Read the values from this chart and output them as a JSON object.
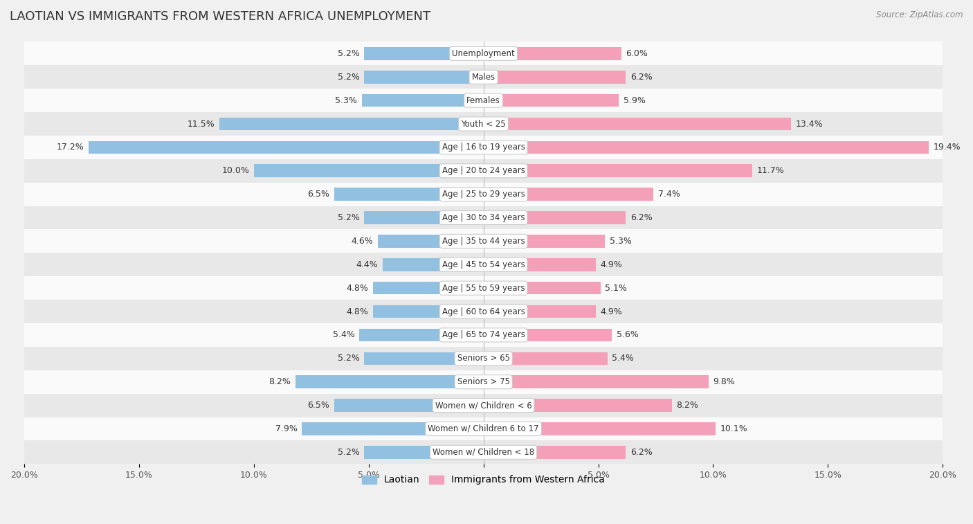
{
  "title": "LAOTIAN VS IMMIGRANTS FROM WESTERN AFRICA UNEMPLOYMENT",
  "source": "Source: ZipAtlas.com",
  "categories": [
    "Unemployment",
    "Males",
    "Females",
    "Youth < 25",
    "Age | 16 to 19 years",
    "Age | 20 to 24 years",
    "Age | 25 to 29 years",
    "Age | 30 to 34 years",
    "Age | 35 to 44 years",
    "Age | 45 to 54 years",
    "Age | 55 to 59 years",
    "Age | 60 to 64 years",
    "Age | 65 to 74 years",
    "Seniors > 65",
    "Seniors > 75",
    "Women w/ Children < 6",
    "Women w/ Children 6 to 17",
    "Women w/ Children < 18"
  ],
  "laotian": [
    5.2,
    5.2,
    5.3,
    11.5,
    17.2,
    10.0,
    6.5,
    5.2,
    4.6,
    4.4,
    4.8,
    4.8,
    5.4,
    5.2,
    8.2,
    6.5,
    7.9,
    5.2
  ],
  "western_africa": [
    6.0,
    6.2,
    5.9,
    13.4,
    19.4,
    11.7,
    7.4,
    6.2,
    5.3,
    4.9,
    5.1,
    4.9,
    5.6,
    5.4,
    9.8,
    8.2,
    10.1,
    6.2
  ],
  "laotian_color": "#92c0e0",
  "western_africa_color": "#f4a0b8",
  "bar_height": 0.55,
  "xlim": 20.0,
  "background_color": "#f0f0f0",
  "row_color_light": "#fafafa",
  "row_color_dark": "#e8e8e8",
  "label_fontsize": 9,
  "title_fontsize": 13,
  "legend_laotian": "Laotian",
  "legend_western_africa": "Immigrants from Western Africa"
}
